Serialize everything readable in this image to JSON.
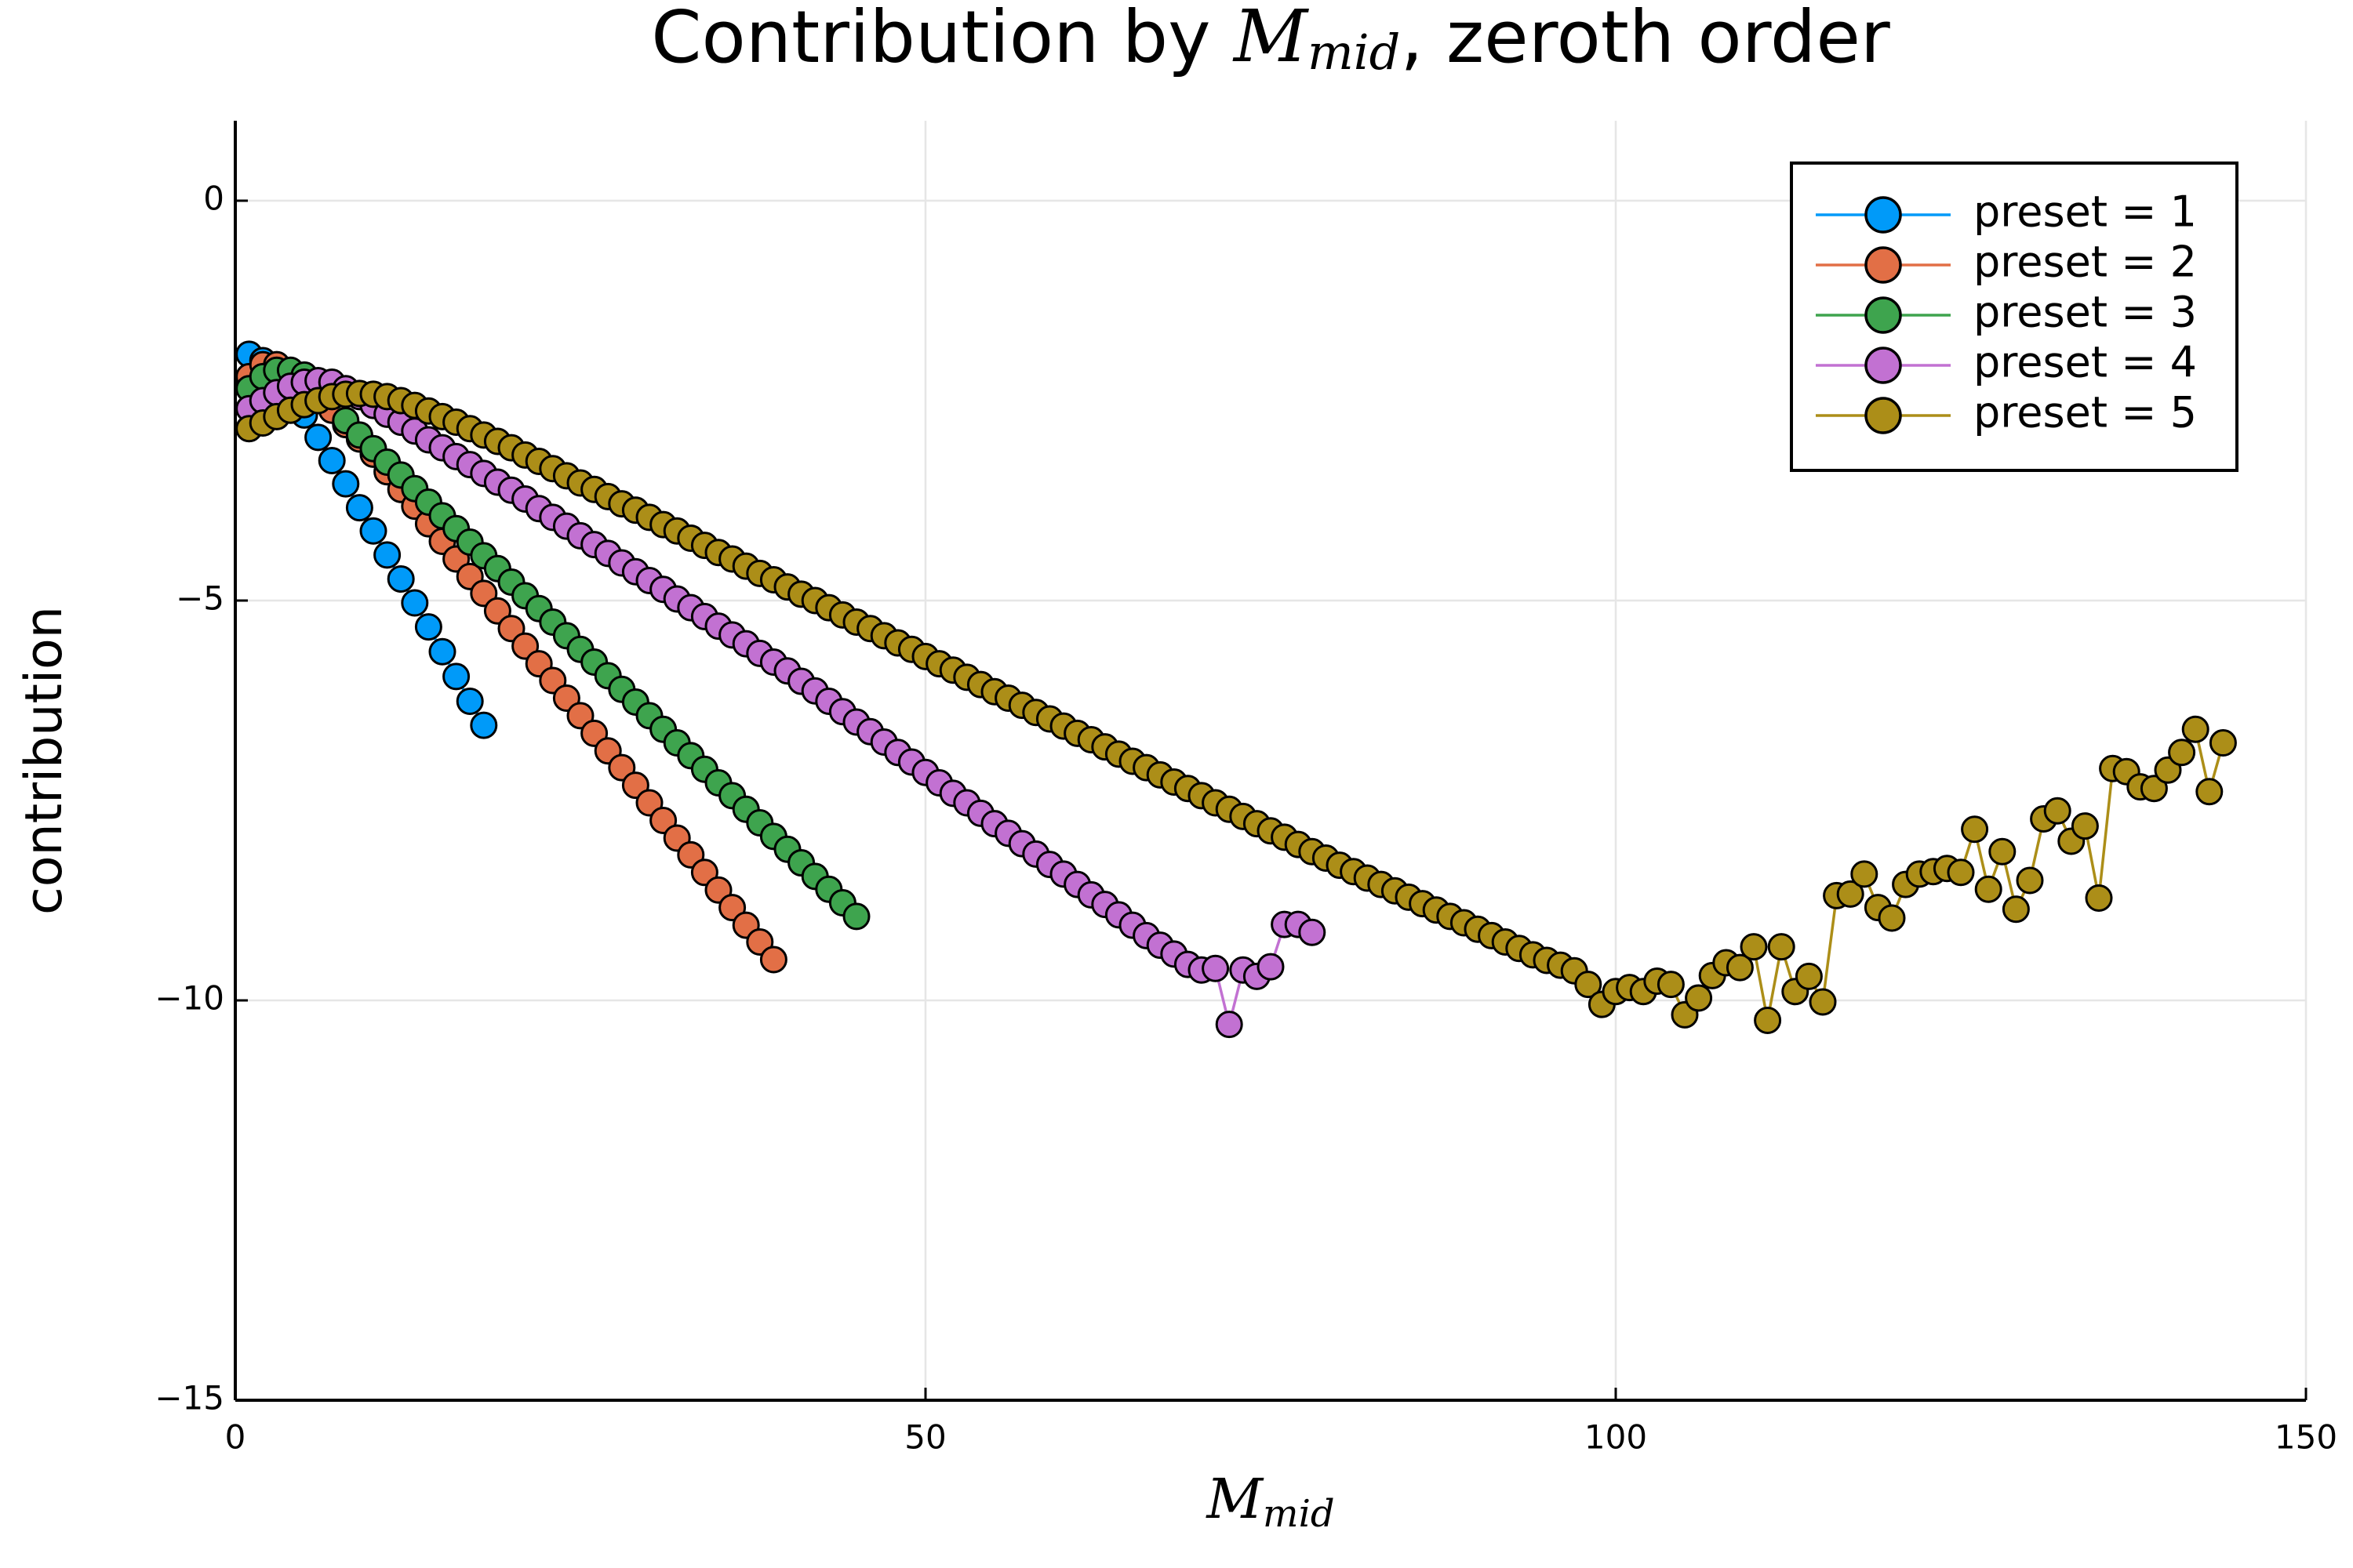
{
  "chart_data": {
    "type": "line",
    "title": {
      "prefix": "Contribution by ",
      "symbol": "M",
      "subscript": "mid",
      "suffix": ", zeroth order"
    },
    "xlabel": {
      "symbol": "M",
      "subscript": "mid"
    },
    "ylabel": "contribution",
    "xlim": [
      0,
      150
    ],
    "xticks": [
      0,
      50,
      100,
      150
    ],
    "ylim": [
      -15,
      1
    ],
    "yticks": [
      {
        "value": -15,
        "label": "−15"
      },
      {
        "value": -10,
        "label": "−10"
      },
      {
        "value": -5,
        "label": "−5"
      },
      0
    ],
    "grid": true,
    "legend": "top-right",
    "markers": true,
    "series": [
      {
        "name": "preset = 1",
        "color": "#009af9",
        "x": [
          1,
          2,
          3,
          4,
          5,
          6,
          7,
          8,
          9,
          10,
          11,
          12,
          13,
          14,
          15,
          16,
          17,
          18
        ],
        "values": [
          -1.92,
          -2.0,
          -2.15,
          -2.4,
          -2.68,
          -2.96,
          -3.25,
          -3.54,
          -3.84,
          -4.13,
          -4.43,
          -4.73,
          -5.03,
          -5.33,
          -5.64,
          -5.95,
          -6.26,
          -6.56
        ]
      },
      {
        "name": "preset = 2",
        "color": "#e26f46",
        "x": [
          1,
          2,
          3,
          4,
          5,
          6,
          7,
          8,
          9,
          10,
          11,
          12,
          13,
          14,
          15,
          16,
          17,
          18,
          19,
          20,
          21,
          22,
          23,
          24,
          25,
          26,
          27,
          28,
          29,
          30,
          31,
          32,
          33,
          34,
          35,
          36,
          37,
          38,
          39
        ],
        "values": [
          -2.2,
          -2.05,
          -2.05,
          -2.15,
          -2.3,
          -2.45,
          -2.62,
          -2.8,
          -2.98,
          -3.17,
          -3.39,
          -3.61,
          -3.82,
          -4.04,
          -4.26,
          -4.48,
          -4.7,
          -4.91,
          -5.13,
          -5.35,
          -5.57,
          -5.79,
          -6.0,
          -6.22,
          -6.44,
          -6.66,
          -6.88,
          -7.09,
          -7.31,
          -7.53,
          -7.75,
          -7.97,
          -8.18,
          -8.4,
          -8.62,
          -8.84,
          -9.06,
          -9.27,
          -9.49
        ]
      },
      {
        "name": "preset = 3",
        "color": "#3ea44e",
        "x": [
          1,
          2,
          3,
          4,
          5,
          6,
          7,
          8,
          9,
          10,
          11,
          12,
          13,
          14,
          15,
          16,
          17,
          18,
          19,
          20,
          21,
          22,
          23,
          24,
          25,
          26,
          27,
          28,
          29,
          30,
          31,
          32,
          33,
          34,
          35,
          36,
          37,
          38,
          39,
          40,
          41,
          42,
          43,
          44,
          45
        ],
        "values": [
          -2.35,
          -2.2,
          -2.12,
          -2.12,
          -2.18,
          -2.28,
          -2.4,
          -2.75,
          -2.93,
          -3.1,
          -3.27,
          -3.43,
          -3.6,
          -3.77,
          -3.94,
          -4.1,
          -4.27,
          -4.44,
          -4.6,
          -4.77,
          -4.94,
          -5.1,
          -5.27,
          -5.44,
          -5.61,
          -5.77,
          -5.94,
          -6.11,
          -6.27,
          -6.44,
          -6.61,
          -6.78,
          -6.94,
          -7.11,
          -7.28,
          -7.44,
          -7.61,
          -7.78,
          -7.95,
          -8.11,
          -8.28,
          -8.45,
          -8.61,
          -8.78,
          -8.95
        ]
      },
      {
        "name": "preset = 4",
        "color": "#c271d2",
        "x": [
          1,
          2,
          3,
          4,
          5,
          6,
          7,
          8,
          9,
          10,
          11,
          12,
          13,
          14,
          15,
          16,
          17,
          18,
          19,
          20,
          21,
          22,
          23,
          24,
          25,
          26,
          27,
          28,
          29,
          30,
          31,
          32,
          33,
          34,
          35,
          36,
          37,
          38,
          39,
          40,
          41,
          42,
          43,
          44,
          45,
          46,
          47,
          48,
          49,
          50,
          51,
          52,
          53,
          54,
          55,
          56,
          57,
          58,
          59,
          60,
          61,
          62,
          63,
          64,
          65,
          66,
          67,
          68,
          69,
          70,
          71,
          72,
          73,
          74,
          75,
          76,
          77,
          78
        ],
        "values": [
          -2.6,
          -2.5,
          -2.4,
          -2.32,
          -2.27,
          -2.25,
          -2.27,
          -2.35,
          -2.45,
          -2.56,
          -2.67,
          -2.77,
          -2.88,
          -2.99,
          -3.09,
          -3.2,
          -3.3,
          -3.41,
          -3.52,
          -3.62,
          -3.73,
          -3.85,
          -3.96,
          -4.07,
          -4.19,
          -4.3,
          -4.41,
          -4.53,
          -4.64,
          -4.75,
          -4.86,
          -4.98,
          -5.09,
          -5.2,
          -5.32,
          -5.43,
          -5.54,
          -5.66,
          -5.77,
          -5.88,
          -6.01,
          -6.13,
          -6.26,
          -6.39,
          -6.52,
          -6.64,
          -6.77,
          -6.9,
          -7.02,
          -7.15,
          -7.28,
          -7.41,
          -7.53,
          -7.66,
          -7.79,
          -7.91,
          -8.04,
          -8.17,
          -8.3,
          -8.42,
          -8.55,
          -8.68,
          -8.8,
          -8.93,
          -9.06,
          -9.19,
          -9.31,
          -9.42,
          -9.55,
          -9.62,
          -9.6,
          -10.3,
          -9.62,
          -9.7,
          -9.58,
          -9.05,
          -9.05,
          -9.15
        ]
      },
      {
        "name": "preset = 5",
        "color": "#ac8e18",
        "x": [
          1,
          2,
          3,
          4,
          5,
          6,
          7,
          8,
          9,
          10,
          11,
          12,
          13,
          14,
          15,
          16,
          17,
          18,
          19,
          20,
          21,
          22,
          23,
          24,
          25,
          26,
          27,
          28,
          29,
          30,
          31,
          32,
          33,
          34,
          35,
          36,
          37,
          38,
          39,
          40,
          41,
          42,
          43,
          44,
          45,
          46,
          47,
          48,
          49,
          50,
          51,
          52,
          53,
          54,
          55,
          56,
          57,
          58,
          59,
          60,
          61,
          62,
          63,
          64,
          65,
          66,
          67,
          68,
          69,
          70,
          71,
          72,
          73,
          74,
          75,
          76,
          77,
          78,
          79,
          80,
          81,
          82,
          83,
          84,
          85,
          86,
          87,
          88,
          89,
          90,
          91,
          92,
          93,
          94,
          95,
          96,
          97,
          98,
          99,
          100,
          101,
          102,
          103,
          104,
          105,
          106,
          107,
          108,
          109,
          110,
          111,
          112,
          113,
          114,
          115,
          116,
          117,
          118,
          119,
          120,
          121,
          122,
          123,
          124,
          125,
          126,
          127,
          128,
          129,
          130,
          131,
          132,
          133,
          134,
          135,
          136,
          137,
          138,
          139,
          140,
          141,
          142,
          143,
          144
        ],
        "values": [
          -2.85,
          -2.78,
          -2.7,
          -2.62,
          -2.55,
          -2.5,
          -2.45,
          -2.42,
          -2.41,
          -2.42,
          -2.45,
          -2.5,
          -2.56,
          -2.63,
          -2.7,
          -2.77,
          -2.85,
          -2.93,
          -3.01,
          -3.09,
          -3.18,
          -3.26,
          -3.35,
          -3.44,
          -3.53,
          -3.61,
          -3.7,
          -3.79,
          -3.87,
          -3.96,
          -4.05,
          -4.13,
          -4.22,
          -4.31,
          -4.4,
          -4.48,
          -4.57,
          -4.66,
          -4.74,
          -4.83,
          -4.92,
          -5.0,
          -5.09,
          -5.18,
          -5.27,
          -5.35,
          -5.44,
          -5.53,
          -5.61,
          -5.7,
          -5.79,
          -5.87,
          -5.96,
          -6.05,
          -6.14,
          -6.22,
          -6.31,
          -6.4,
          -6.48,
          -6.57,
          -6.66,
          -6.74,
          -6.83,
          -6.92,
          -7.01,
          -7.09,
          -7.18,
          -7.27,
          -7.35,
          -7.44,
          -7.53,
          -7.61,
          -7.7,
          -7.79,
          -7.88,
          -7.96,
          -8.05,
          -8.14,
          -8.22,
          -8.31,
          -8.39,
          -8.47,
          -8.55,
          -8.63,
          -8.71,
          -8.79,
          -8.87,
          -8.95,
          -9.03,
          -9.11,
          -9.19,
          -9.27,
          -9.35,
          -9.43,
          -9.5,
          -9.56,
          -9.63,
          -9.8,
          -10.05,
          -9.89,
          -9.84,
          -9.89,
          -9.76,
          -9.8,
          -10.18,
          -9.97,
          -9.69,
          -9.53,
          -9.59,
          -9.33,
          -10.25,
          -9.33,
          -9.89,
          -9.7,
          -10.02,
          -8.69,
          -8.67,
          -8.42,
          -8.84,
          -8.97,
          -8.55,
          -8.42,
          -8.39,
          -8.35,
          -8.4,
          -7.86,
          -8.61,
          -8.14,
          -8.86,
          -8.5,
          -7.73,
          -7.63,
          -8.01,
          -7.82,
          -8.72,
          -7.1,
          -7.14,
          -7.33,
          -7.35,
          -7.12,
          -6.9,
          -6.61,
          -7.39,
          -6.78
        ]
      }
    ]
  }
}
